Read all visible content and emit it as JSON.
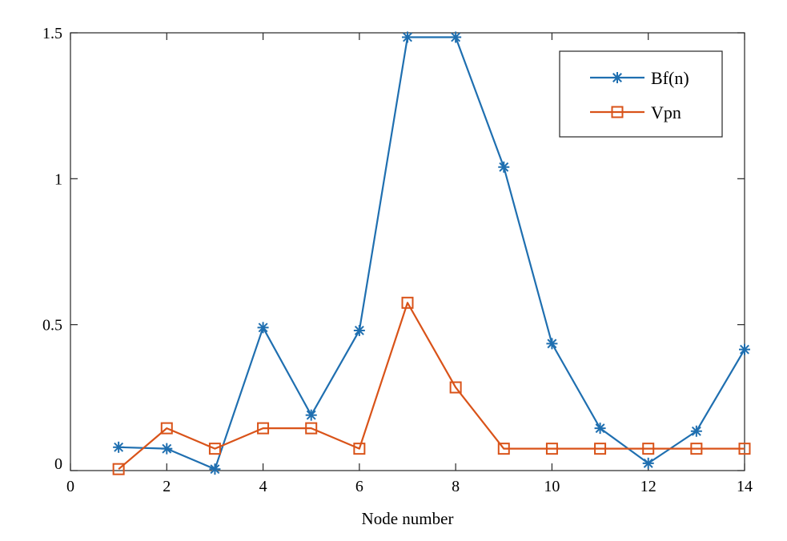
{
  "chart_data": {
    "type": "line",
    "xlabel": "Node number",
    "ylabel": "",
    "xlim": [
      0,
      14
    ],
    "ylim": [
      0,
      1.5
    ],
    "xticks": [
      0,
      2,
      4,
      6,
      8,
      10,
      12,
      14
    ],
    "xtick_labels": [
      "0",
      "2",
      "4",
      "6",
      "8",
      "10",
      "12",
      "14"
    ],
    "yticks": [
      0,
      0.5,
      1,
      1.5
    ],
    "ytick_labels": [
      "0",
      "0.5",
      "1",
      "1.5"
    ],
    "grid": false,
    "legend": {
      "placement": "top-right"
    },
    "x": [
      1,
      2,
      3,
      4,
      5,
      6,
      7,
      8,
      9,
      10,
      11,
      12,
      13,
      14
    ],
    "series": [
      {
        "name": "Bf(n)",
        "color": "#1f6fb0",
        "marker": "asterisk",
        "values": [
          0.08,
          0.075,
          0.005,
          0.49,
          0.19,
          0.48,
          1.485,
          1.485,
          1.04,
          0.435,
          0.145,
          0.025,
          0.135,
          0.415
        ]
      },
      {
        "name": "Vpn",
        "color": "#d95319",
        "marker": "square",
        "values": [
          0.005,
          0.145,
          0.075,
          0.145,
          0.145,
          0.075,
          0.575,
          0.285,
          0.075,
          0.075,
          0.075,
          0.075,
          0.075,
          0.075
        ]
      }
    ]
  }
}
